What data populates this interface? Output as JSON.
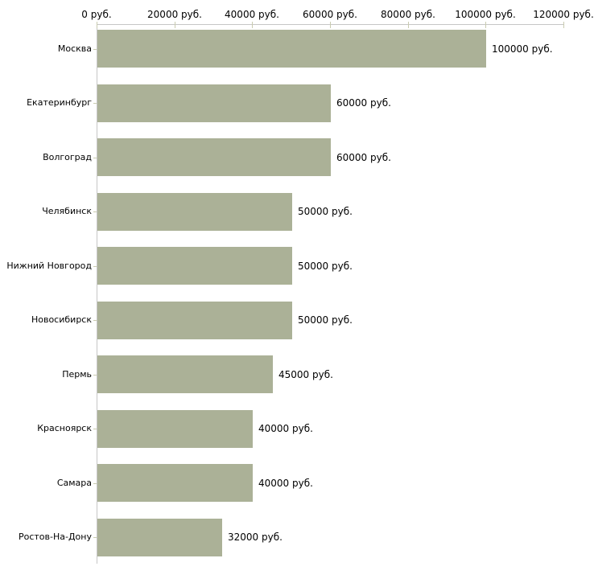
{
  "chart_data": {
    "type": "bar",
    "orientation": "horizontal",
    "categories": [
      "Москва",
      "Екатеринбург",
      "Волгоград",
      "Челябинск",
      "Нижний Новгород",
      "Новосибирск",
      "Пермь",
      "Красноярск",
      "Самара",
      "Ростов-На-Дону"
    ],
    "values": [
      100000,
      60000,
      60000,
      50000,
      50000,
      50000,
      45000,
      40000,
      40000,
      32000
    ],
    "value_labels": [
      "100000 руб.",
      "60000 руб.",
      "60000 руб.",
      "50000 руб.",
      "50000 руб.",
      "50000 руб.",
      "45000 руб.",
      "40000 руб.",
      "40000 руб.",
      "32000 руб."
    ],
    "x_axis": {
      "position": "top",
      "min": 0,
      "max": 120000,
      "tick_interval": 20000,
      "tick_labels": [
        "0 руб.",
        "20000 руб.",
        "40000 руб.",
        "60000 руб.",
        "80000 руб.",
        "100000 руб.",
        "120000 руб."
      ]
    },
    "grid": false,
    "legend": false,
    "colors": {
      "bar": "#abb197",
      "axis_line": "#c6c6c6",
      "tick": "#c9cbb0",
      "text": "#000000",
      "background": "#ffffff"
    }
  }
}
